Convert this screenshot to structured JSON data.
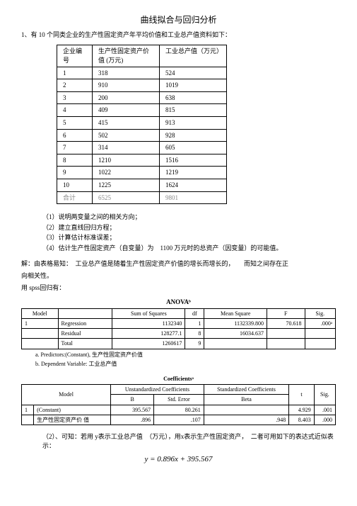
{
  "title": "曲线拟合与回归分析",
  "intro": "1、有 10 个同类企业的生产性固定资产年平均价值和工业总产值资料如下：",
  "data_table": {
    "headers": [
      "企业编号",
      "生产性固定资产价值 (万元)",
      "工业总产值（万元）"
    ],
    "rows": [
      [
        "1",
        "318",
        "524"
      ],
      [
        "2",
        "910",
        "1019"
      ],
      [
        "3",
        "200",
        "638"
      ],
      [
        "4",
        "409",
        "815"
      ],
      [
        "5",
        "415",
        "913"
      ],
      [
        "6",
        "502",
        "928"
      ],
      [
        "7",
        "314",
        "605"
      ],
      [
        "8",
        "1210",
        "1516"
      ],
      [
        "9",
        "1022",
        "1219"
      ],
      [
        "10",
        "1225",
        "1624"
      ]
    ],
    "sum_row": [
      "合计",
      "6525",
      "9801"
    ]
  },
  "questions": [
    "（1）说明两变量之间的相关方向；",
    "（2）建立直线回归方程；",
    "（3）计算估计标准误差；",
    "（4）估计生产性固定资产（自变量）为　1100 万元时的总资产（因变量）的可能值。"
  ],
  "analysis_l1": "解：由表格易知：　工业总产值是随着生产性固定资产价值的增长而增长的，　　而知之间存在正",
  "analysis_l2": "向相关性。",
  "analysis_l3": "用 spss回归有：",
  "anova": {
    "title": "ANOVAᵇ",
    "headers": [
      "Model",
      "",
      "Sum of Squares",
      "df",
      "Mean Square",
      "F",
      "Sig."
    ],
    "rows": [
      [
        "1",
        "Regression",
        "1132340",
        "1",
        "1132339.800",
        "70.618",
        ".000ᵃ"
      ],
      [
        "",
        "Residual",
        "128277.1",
        "8",
        "16034.637",
        "",
        ""
      ],
      [
        "",
        "Total",
        "1260617",
        "9",
        "",
        "",
        ""
      ]
    ],
    "foot_a": "a. Predictors:(Constant), 生产性固定资产价值",
    "foot_b": "b. Dependent Variable: 工业总产值"
  },
  "coef": {
    "title": "Coefficientsᵃ",
    "h1": "Unstandardized Coefficients",
    "h2": "Standardized Coefficients",
    "sub": [
      "Model",
      "",
      "B",
      "Std. Error",
      "Beta",
      "t",
      "Sig."
    ],
    "rows": [
      [
        "1",
        "(Constant)",
        "395.567",
        "80.261",
        "",
        "4.929",
        ".001"
      ],
      [
        "",
        "生产性固定资产价 值",
        ".896",
        ".107",
        ".948",
        "8.403",
        ".000"
      ]
    ]
  },
  "conclusion": "（2）、可知：若用 y表示工业总产值　（万元），用x表示生产性固定资产，　二者可用如下的表达式近似表示：",
  "equation": "y = 0.896x + 395.567"
}
